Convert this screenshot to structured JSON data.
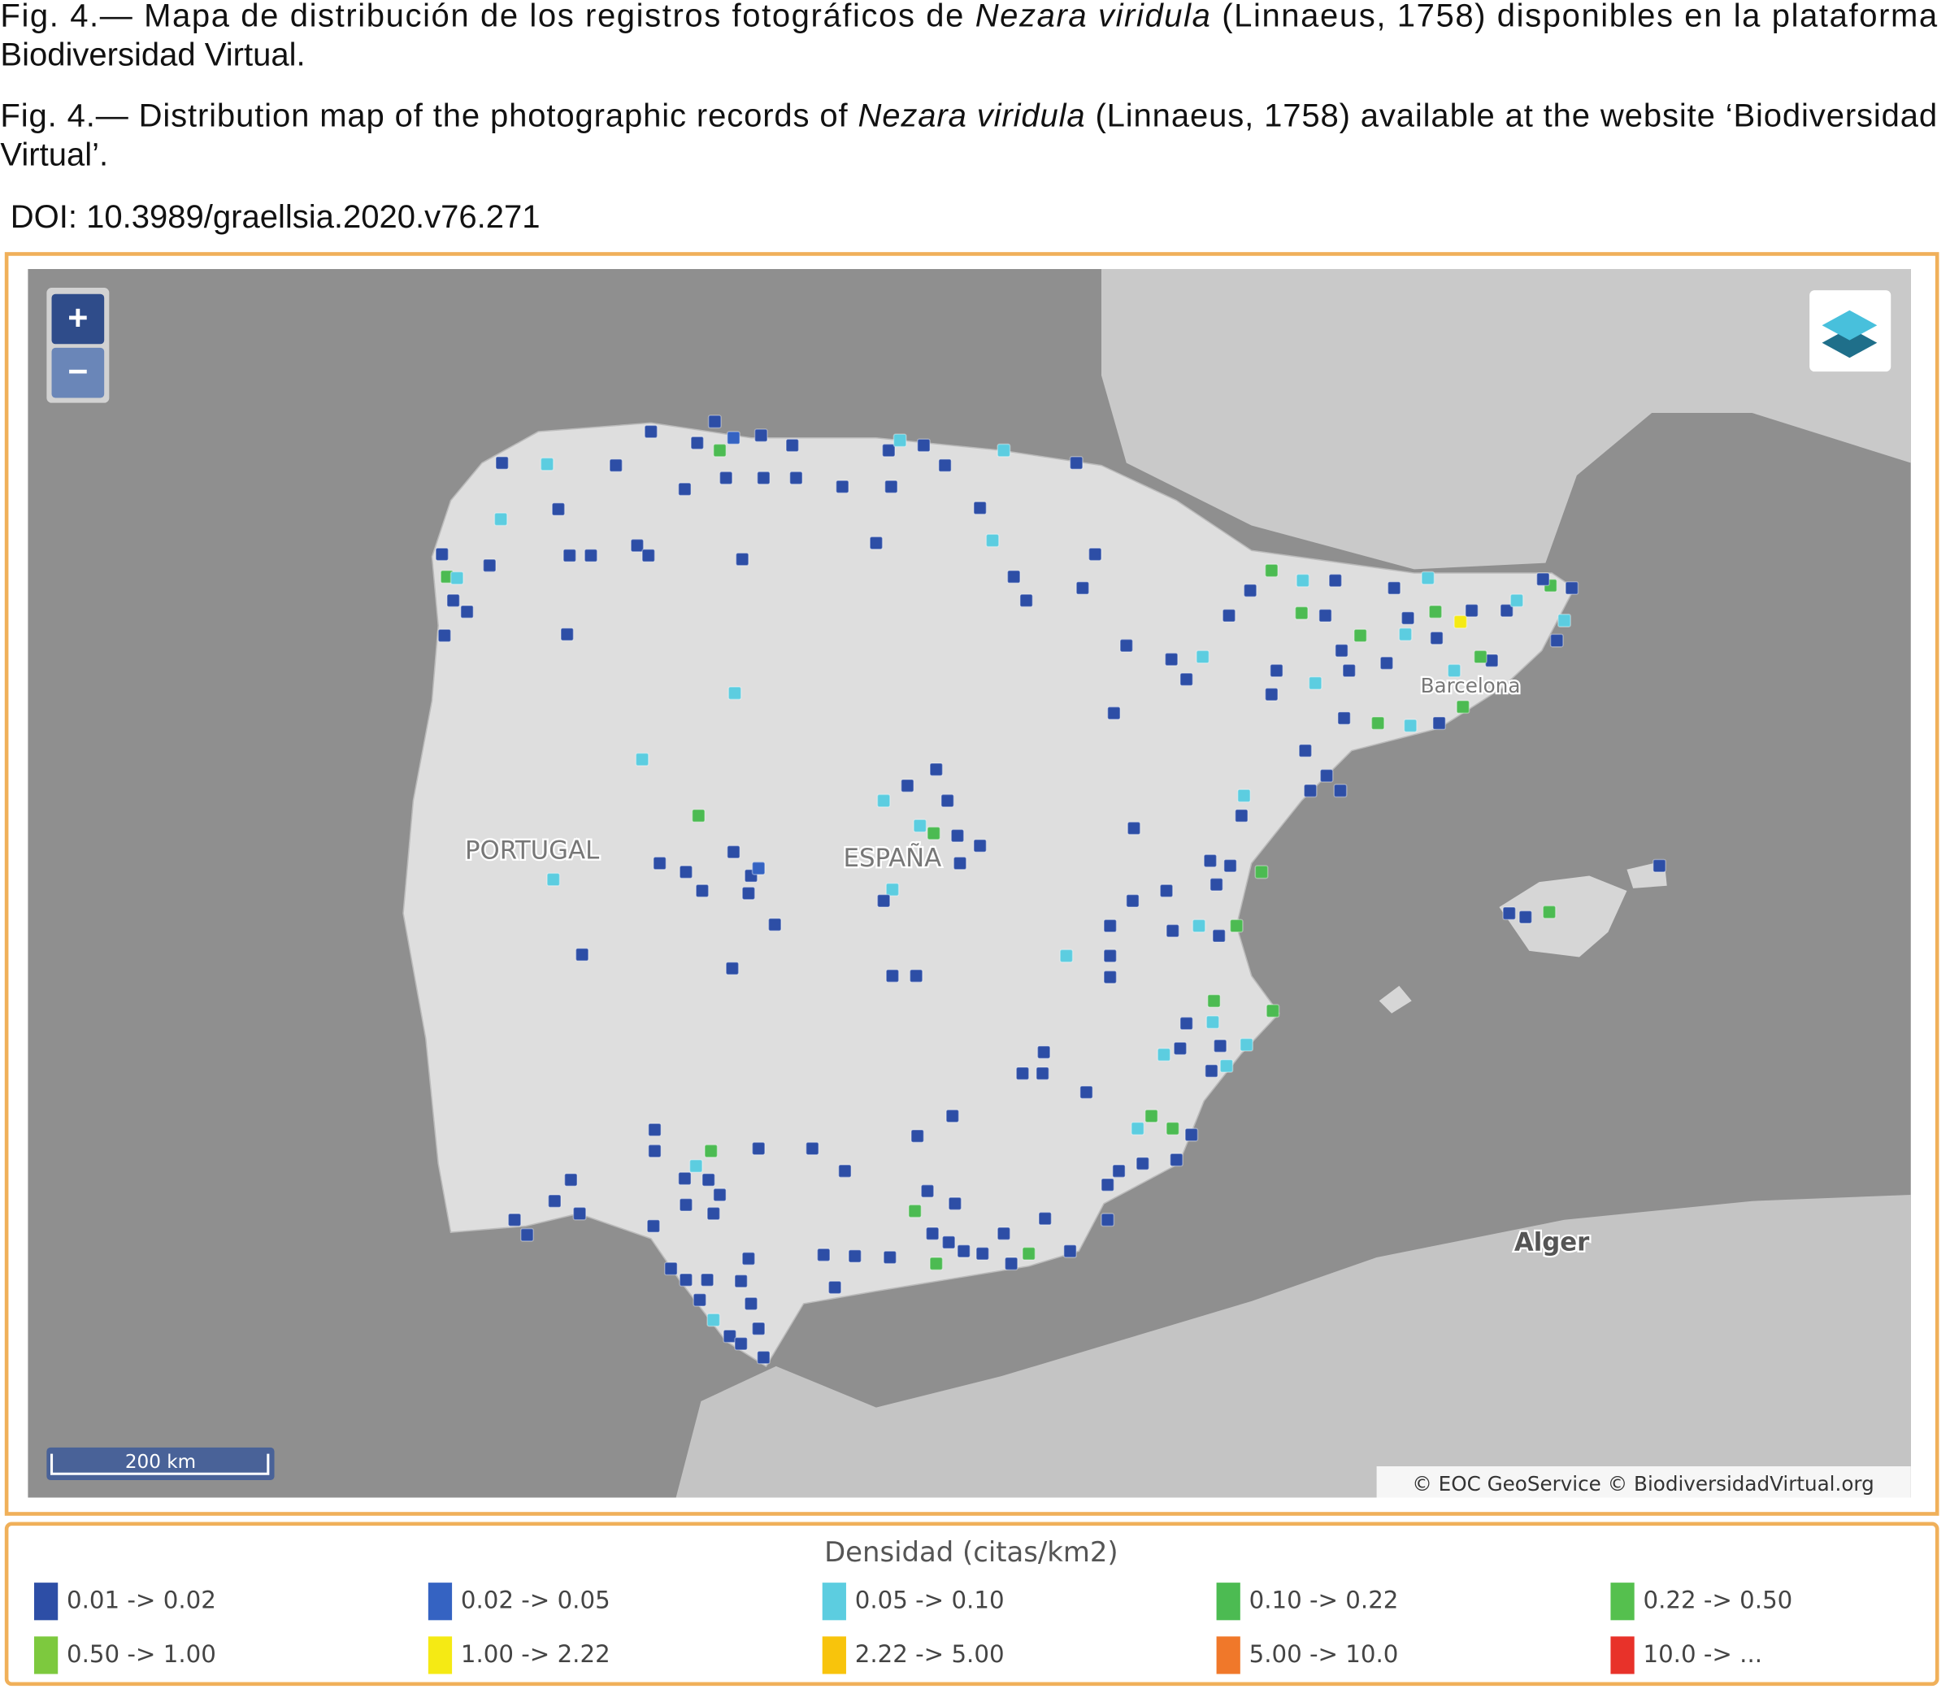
{
  "caption_es": [
    [
      "Fig. 4.— Mapa de distribución de los registros fotográficos de ",
      "Nezara viridula",
      " (Linnaeus, 1758) disponibles en la plataforma"
    ],
    [
      "Biodiversidad Virtual."
    ]
  ],
  "caption_en": [
    [
      "Fig. 4.— Distribution map of the photographic records of ",
      "Nezara viridula",
      " (Linnaeus, 1758) available at the website ‘Biodiversidad"
    ],
    [
      "Virtual’."
    ]
  ],
  "doi": "DOI: 10.3989/graellsia.2020.v76.271",
  "map": {
    "zoom_in": "+",
    "zoom_out": "−",
    "labels": [
      "PORTUGAL",
      "ESPAÑA",
      "Barcelona",
      "Alger"
    ],
    "scale": "200 km",
    "attribution": "© EOC GeoService © BiodiversidadVirtual.org"
  },
  "legend": {
    "title": "Densidad (citas/km2)",
    "items": [
      {
        "label": "0.01 -> 0.02",
        "color": "#2d4ea6"
      },
      {
        "label": "0.02 -> 0.05",
        "color": "#3563c2"
      },
      {
        "label": "0.05 -> 0.10",
        "color": "#5ccde0"
      },
      {
        "label": "0.10 -> 0.22",
        "color": "#4cbb52"
      },
      {
        "label": "0.22 -> 0.50",
        "color": "#55c04e"
      },
      {
        "label": "0.50 -> 1.00",
        "color": "#7dc93e"
      },
      {
        "label": "1.00 -> 2.22",
        "color": "#f5ea14"
      },
      {
        "label": "2.22 -> 5.00",
        "color": "#f8c40c"
      },
      {
        "label": "5.00 -> 10.0",
        "color": "#f0782a"
      },
      {
        "label": "10.0 -> ...",
        "color": "#e8322a"
      }
    ]
  }
}
